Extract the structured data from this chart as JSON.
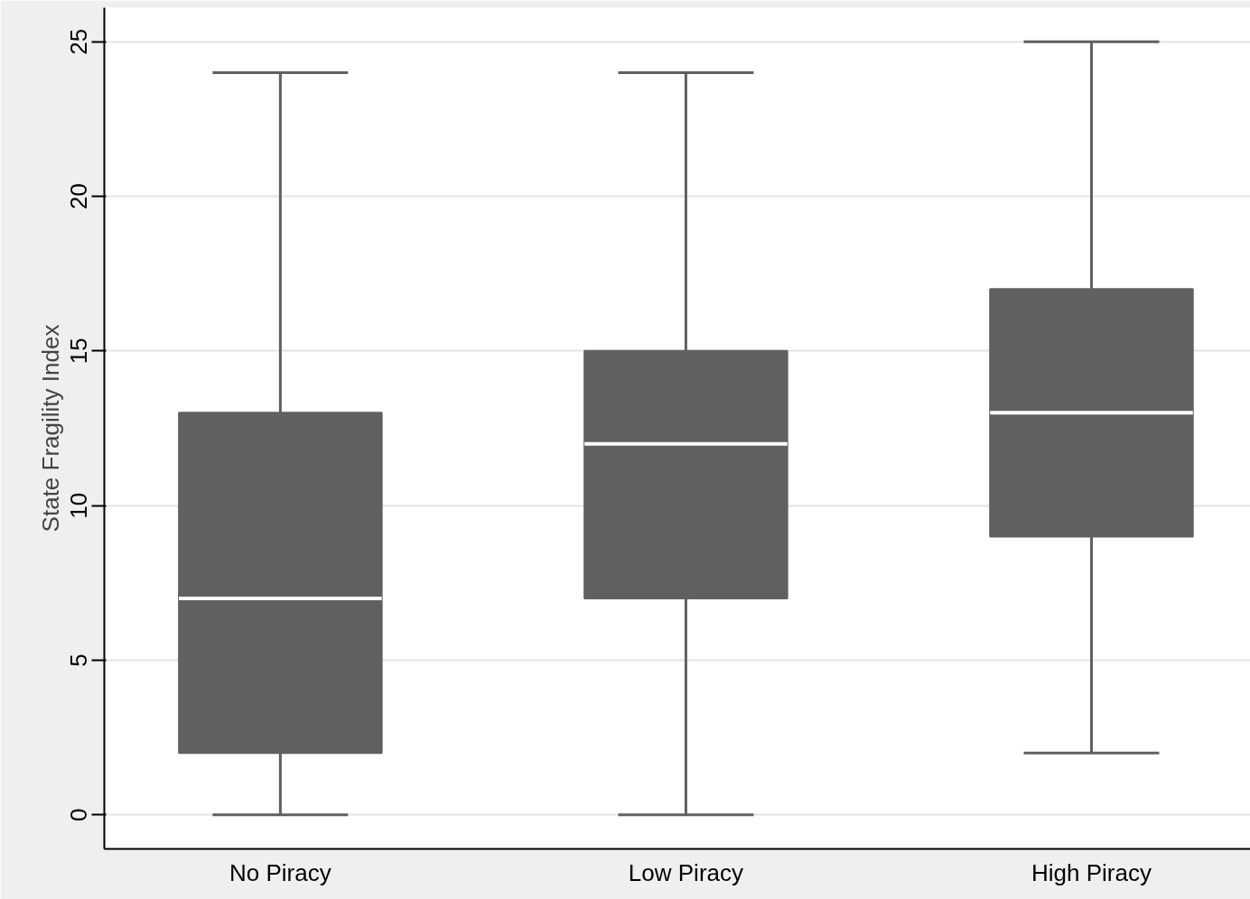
{
  "chart_data": {
    "type": "box",
    "ylabel": "State Fragility Index",
    "categories": [
      "No Piracy",
      "Low Piracy",
      "High Piracy"
    ],
    "ylim": [
      -1.1,
      26.1
    ],
    "yticks": [
      0,
      5,
      10,
      15,
      20,
      25
    ],
    "grid": "y",
    "series": [
      {
        "color": "#606060",
        "boxes": [
          {
            "low": 0,
            "q1": 2,
            "median": 7,
            "q3": 13,
            "high": 24
          },
          {
            "low": 0,
            "q1": 7,
            "median": 12,
            "q3": 15,
            "high": 24
          },
          {
            "low": 2,
            "q1": 9,
            "median": 13,
            "q3": 17,
            "high": 25
          }
        ]
      }
    ]
  }
}
